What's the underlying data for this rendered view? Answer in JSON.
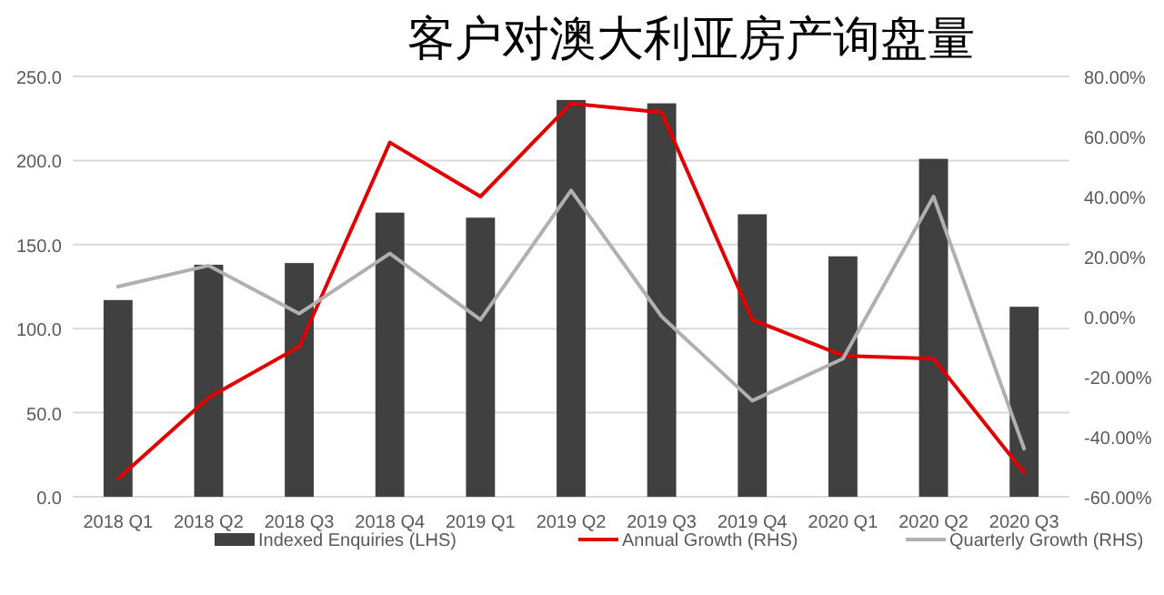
{
  "chart_data": {
    "type": "bar",
    "title": "客户对澳大利亚房产询盘量",
    "categories": [
      "2018 Q1",
      "2018 Q2",
      "2018 Q3",
      "2018 Q4",
      "2019 Q1",
      "2019 Q2",
      "2019 Q3",
      "2019 Q4",
      "2020 Q1",
      "2020 Q2",
      "2020 Q3"
    ],
    "series": [
      {
        "name": "Indexed Enquiries (LHS)",
        "color": "#404040",
        "values": [
          117,
          138,
          139,
          169,
          166,
          236,
          234,
          168,
          143,
          201,
          113
        ]
      },
      {
        "name": "Annual Growth (RHS)",
        "type": "line",
        "axis": "y2",
        "color": "#e00000",
        "values": [
          -54,
          -27,
          -10,
          58,
          40,
          71,
          68,
          -1,
          -13,
          -14,
          -52
        ]
      },
      {
        "name": "Quarterly Growth (RHS)",
        "type": "line",
        "axis": "y2",
        "color": "#b0b0b0",
        "values": [
          10,
          17,
          1,
          21,
          -1,
          42,
          0,
          -28,
          -14,
          40,
          -44
        ]
      }
    ],
    "ylim": [
      0,
      250
    ],
    "yticks": [
      {
        "value": 0,
        "label": "0.0"
      },
      {
        "value": 50,
        "label": "50.0"
      },
      {
        "value": 100,
        "label": "100.0"
      },
      {
        "value": 150,
        "label": "150.0"
      },
      {
        "value": 200,
        "label": "200.0"
      },
      {
        "value": 250,
        "label": "250.0"
      }
    ],
    "y2lim": [
      -60,
      80
    ],
    "y2ticks": [
      {
        "value": -60,
        "label": "-60.00%"
      },
      {
        "value": -40,
        "label": "-40.00%"
      },
      {
        "value": -20,
        "label": "-20.00%"
      },
      {
        "value": 0,
        "label": "0.00%"
      },
      {
        "value": 20,
        "label": "20.00%"
      },
      {
        "value": 40,
        "label": "40.00%"
      },
      {
        "value": 60,
        "label": "60.00%"
      },
      {
        "value": 80,
        "label": "80.00%"
      }
    ],
    "grid": "y",
    "legend": "bottom"
  }
}
